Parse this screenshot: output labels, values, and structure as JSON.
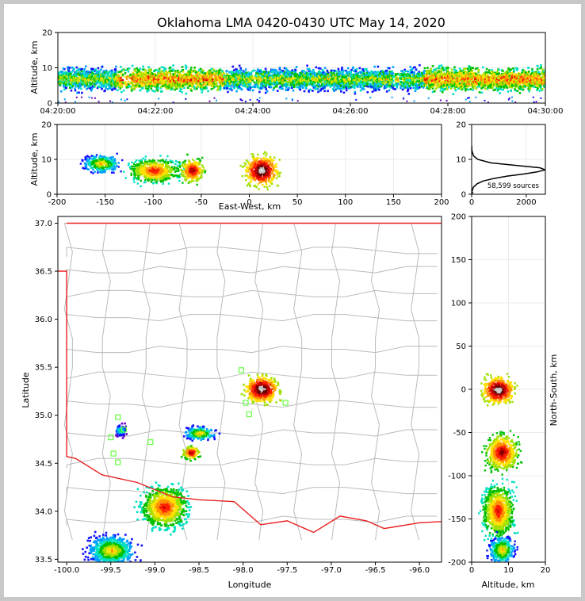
{
  "chart_data": [
    {
      "panel": "time-altitude",
      "type": "heatmap",
      "title": "Oklahoma LMA 0420-0430 UTC May 14, 2020",
      "xlabel": "",
      "ylabel": "Altitude, km",
      "x_ticks": [
        "04:20:00",
        "04:22:00",
        "04:24:00",
        "04:26:00",
        "04:28:00",
        "04:30:00"
      ],
      "y_ticks": [
        "0",
        "10",
        "20"
      ],
      "xlim": [
        "04:20:00",
        "04:30:00"
      ],
      "ylim": [
        0,
        20
      ],
      "band": {
        "altitude_low": 3,
        "altitude_high": 12,
        "core_altitude": 7
      }
    },
    {
      "panel": "east-west-altitude",
      "type": "heatmap",
      "xlabel": "East-West, km",
      "ylabel": "Altitude, km",
      "x_ticks": [
        "-200",
        "-150",
        "-100",
        "-50",
        "0",
        "50",
        "100",
        "150",
        "200"
      ],
      "y_ticks": [
        "0",
        "10",
        "20"
      ],
      "xlim": [
        -200,
        200
      ],
      "ylim": [
        0,
        20
      ],
      "clusters": [
        {
          "x_center": -155,
          "x_half_width": 22,
          "alt_center": 9,
          "alt_half_height": 3,
          "density": "medium"
        },
        {
          "x_center": -100,
          "x_half_width": 30,
          "alt_center": 7,
          "alt_half_height": 4,
          "density": "high"
        },
        {
          "x_center": -60,
          "x_half_width": 15,
          "alt_center": 7,
          "alt_half_height": 4,
          "density": "very-high"
        },
        {
          "x_center": 12,
          "x_half_width": 20,
          "alt_center": 7,
          "alt_half_height": 5,
          "density": "extreme"
        }
      ]
    },
    {
      "panel": "altitude-histogram",
      "type": "line",
      "annotation": "58,599 sources",
      "x_ticks": [
        "0",
        "2000"
      ],
      "y_ticks": [
        "0",
        "10",
        "20"
      ],
      "xlim": [
        0,
        2700
      ],
      "ylim": [
        0,
        20
      ],
      "x": [
        5,
        20,
        60,
        200,
        420,
        800,
        1300,
        1900,
        2400,
        2690,
        2500,
        1700,
        700,
        220,
        70,
        10,
        0
      ],
      "y": [
        0.5,
        1,
        2,
        3,
        3.8,
        4.5,
        5.2,
        5.8,
        6.4,
        7,
        7.6,
        8.2,
        9,
        10,
        11,
        12.5,
        14
      ]
    },
    {
      "panel": "plan-view",
      "type": "heatmap",
      "xlabel": "Longitude",
      "ylabel": "Latitude",
      "x_ticks": [
        "-100.0",
        "-99.5",
        "-99.0",
        "-98.5",
        "-98.0",
        "-97.5",
        "-97.0",
        "-96.5",
        "-96.0"
      ],
      "y_ticks": [
        "33.5",
        "34.0",
        "34.5",
        "35.0",
        "35.5",
        "36.0",
        "36.5",
        "37.0"
      ],
      "xlim": [
        -100.1,
        -95.75
      ],
      "ylim": [
        33.47,
        37.07
      ],
      "clusters": [
        {
          "lon": -97.8,
          "lat": 35.28,
          "rx": 0.22,
          "ry": 0.16,
          "density": "extreme"
        },
        {
          "lon": -98.6,
          "lat": 34.62,
          "rx": 0.12,
          "ry": 0.08,
          "density": "very-high"
        },
        {
          "lon": -98.9,
          "lat": 34.05,
          "rx": 0.3,
          "ry": 0.25,
          "density": "high"
        },
        {
          "lon": -99.5,
          "lat": 33.6,
          "rx": 0.3,
          "ry": 0.18,
          "density": "medium"
        },
        {
          "lon": -98.5,
          "lat": 34.82,
          "rx": 0.2,
          "ry": 0.08,
          "density": "medium"
        },
        {
          "lon": -99.4,
          "lat": 34.85,
          "rx": 0.08,
          "ry": 0.08,
          "density": "low"
        }
      ],
      "stations": [
        {
          "lon": -98.02,
          "lat": 35.47
        },
        {
          "lon": -97.97,
          "lat": 35.13
        },
        {
          "lon": -97.93,
          "lat": 35.01
        },
        {
          "lon": -97.52,
          "lat": 35.13
        },
        {
          "lon": -99.42,
          "lat": 34.98
        },
        {
          "lon": -99.35,
          "lat": 34.85
        },
        {
          "lon": -99.5,
          "lat": 34.77
        },
        {
          "lon": -99.05,
          "lat": 34.72
        },
        {
          "lon": -99.47,
          "lat": 34.6
        },
        {
          "lon": -99.42,
          "lat": 34.51
        }
      ],
      "station_color": "#66ff44",
      "boundary_color": "#e82020",
      "county_color": "#bbbbbb"
    },
    {
      "panel": "altitude-north-south",
      "type": "heatmap",
      "xlabel": "Altitude, km",
      "ylabel": "North-South, km",
      "x_ticks": [
        "0",
        "10",
        "20"
      ],
      "y_ticks": [
        "200",
        "150",
        "100",
        "50",
        "0",
        "-50",
        "-100",
        "-150",
        "-200"
      ],
      "xlim": [
        0,
        20
      ],
      "ylim": [
        -200,
        200
      ],
      "clusters": [
        {
          "alt_center": 7,
          "alt_half_width": 5,
          "ns_center": 0,
          "ns_half_height": 18,
          "density": "extreme"
        },
        {
          "alt_center": 8,
          "alt_half_width": 5,
          "ns_center": -72,
          "ns_half_height": 24,
          "density": "very-high"
        },
        {
          "alt_center": 7,
          "alt_half_width": 5,
          "ns_center": -140,
          "ns_half_height": 35,
          "density": "high"
        },
        {
          "alt_center": 8,
          "alt_half_width": 4,
          "ns_center": -185,
          "ns_half_height": 18,
          "density": "medium"
        }
      ]
    }
  ]
}
